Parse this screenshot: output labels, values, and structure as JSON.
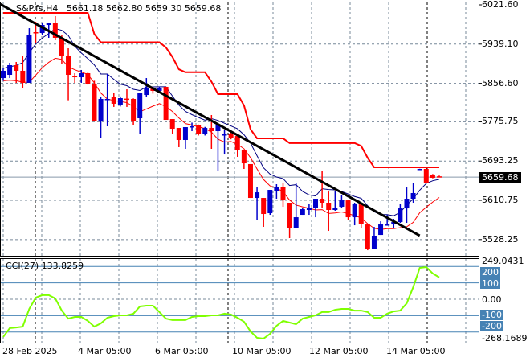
{
  "header": {
    "symbol": "S&P.fs,H4",
    "open": "5661.18",
    "high": "5662.80",
    "low": "5659.30",
    "close": "5659.68"
  },
  "price_axis": {
    "ticks": [
      "6021.60",
      "5939.10",
      "5856.60",
      "5775.75",
      "5693.25",
      "5610.75",
      "5528.25"
    ],
    "current": "5659.68"
  },
  "cci": {
    "label": "CCI(27) 133.8259",
    "max_label": "249.0431",
    "min_label": "-268.1689",
    "zero_label": "0.00",
    "levels": [
      "200",
      "100",
      "-100",
      "-200"
    ]
  },
  "time_axis": [
    "28 Feb 2025",
    "4 Mar 05:00",
    "6 Mar 05:00",
    "10 Mar 05:00",
    "12 Mar 05:00",
    "14 Mar 05:00"
  ],
  "colors": {
    "bull": "#0000cc",
    "bear": "#ff0000",
    "ma_upper": "#000080",
    "ma_lower": "#ff0000",
    "cci_line": "#7fff00",
    "level_line": "#4682b4",
    "trendline": "#000000"
  },
  "chart_data": {
    "type": "candlestick",
    "ohlc": [
      [
        5867.7,
        5888,
        5862,
        5883.0
      ],
      [
        5874.5,
        5899.9,
        5867.7,
        5894.8
      ],
      [
        5894.8,
        5901.6,
        5857.6,
        5883.0
      ],
      [
        5883.0,
        5915.1,
        5845.8,
        5857.6
      ],
      [
        5857.6,
        5972.5,
        5857.6,
        5959.0
      ],
      [
        5964.1,
        5986.1,
        5942.1,
        5962.4
      ],
      [
        5962.4,
        5982.7,
        5959.0,
        5979.3
      ],
      [
        5979.3,
        5984.4,
        5952.3,
        5982.7
      ],
      [
        5982.7,
        5998,
        5947.2,
        5952.3
      ],
      [
        5952.3,
        5959.0,
        5896.5,
        5913.4
      ],
      [
        5915.1,
        5930.3,
        5821,
        5874.5
      ],
      [
        5872,
        5877.9,
        5857.6,
        5869.4
      ],
      [
        5869.4,
        5884.7,
        5857.6,
        5877.9
      ],
      [
        5877.9,
        5879,
        5854,
        5855.9
      ],
      [
        5855.9,
        5862,
        5776.4,
        5776.4
      ],
      [
        5776.4,
        5828.9,
        5741,
        5823.8
      ],
      [
        5822,
        5876.2,
        5766.3,
        5823.8
      ],
      [
        5827.2,
        5837,
        5807,
        5813.7
      ],
      [
        5812.0,
        5829,
        5808,
        5825.5
      ],
      [
        5824.5,
        5844,
        5807,
        5822.5
      ],
      [
        5823.8,
        5825,
        5768.0,
        5776.4
      ],
      [
        5783.2,
        5835.6,
        5749.4,
        5835.6
      ],
      [
        5832.2,
        5867.7,
        5828.9,
        5845.8
      ],
      [
        5845.8,
        5849,
        5835,
        5840.7
      ],
      [
        5840.7,
        5850,
        5838,
        5847.5
      ],
      [
        5849.2,
        5849.2,
        5779.8,
        5779.8
      ],
      [
        5781.5,
        5781.5,
        5751.1,
        5761.2
      ],
      [
        5762.9,
        5762.9,
        5722.4,
        5737.6
      ],
      [
        5737.6,
        5764.6,
        5719.0,
        5764.6
      ],
      [
        5764.6,
        5774,
        5756.2,
        5766.3
      ],
      [
        5768.0,
        5770,
        5747,
        5749.4
      ],
      [
        5749.4,
        5765,
        5747,
        5762.9
      ],
      [
        5762.9,
        5790.0,
        5719.0,
        5756.2
      ],
      [
        5756.2,
        5769.7,
        5672,
        5769.7
      ],
      [
        5747,
        5757.9,
        5707.1,
        5749.4
      ],
      [
        5751.1,
        5753,
        5739,
        5741.0
      ],
      [
        5746.0,
        5746,
        5702.1,
        5715.6
      ],
      [
        5717.3,
        5717.3,
        5676.7,
        5688.5
      ],
      [
        5686.9,
        5686.9,
        5615.8,
        5615.8
      ],
      [
        5615.8,
        5637.8,
        5570.2,
        5627.6
      ],
      [
        5615.8,
        5615.8,
        5555.0,
        5582.0
      ],
      [
        5583.7,
        5632.7,
        5580.3,
        5632.7
      ],
      [
        5631.0,
        5644.6,
        5614.1,
        5639.5
      ],
      [
        5639.5,
        5647.9,
        5597.2,
        5610.7
      ],
      [
        5605.7,
        5605.7,
        5531.3,
        5553.3
      ],
      [
        5553.3,
        5647.9,
        5553.3,
        5575.2
      ],
      [
        5580.3,
        5594,
        5580.3,
        5592.1
      ],
      [
        5590.5,
        5604,
        5580.3,
        5595.5
      ],
      [
        5595.5,
        5614.1,
        5575.2,
        5614.1
      ],
      [
        5614.1,
        5673.3,
        5593.8,
        5605.7
      ],
      [
        5605.7,
        5629.3,
        5546.5,
        5590.5
      ],
      [
        5590.5,
        5631.0,
        5588.8,
        5595.5
      ],
      [
        5597.2,
        5621,
        5595.5,
        5610.7
      ],
      [
        5610.7,
        5610.7,
        5568.5,
        5575.2
      ],
      [
        5575.2,
        5605.7,
        5558.3,
        5602.3
      ],
      [
        5602.3,
        5605.7,
        5553.3,
        5561.7
      ],
      [
        5560.0,
        5560,
        5505.9,
        5509.3
      ],
      [
        5509.3,
        5555.0,
        5509.3,
        5536.4
      ],
      [
        5538.0,
        5566.7,
        5538.0,
        5560.0
      ],
      [
        5558.3,
        5580.3,
        5558.3,
        5560.0
      ],
      [
        5560.0,
        5571.9,
        5551.6,
        5565.1
      ],
      [
        5565.1,
        5604.0,
        5563.4,
        5593.8
      ],
      [
        5593.8,
        5637.8,
        5563.4,
        5614.1
      ],
      [
        5614.1,
        5647.9,
        5605.7,
        5626.0
      ],
      [
        5676.7,
        5677,
        5676,
        5676.7
      ],
      [
        5676.7,
        5681.8,
        5647.9,
        5647.9
      ],
      [
        5664.9,
        5666,
        5657,
        5658.1
      ],
      [
        5661.18,
        5662.8,
        5659.3,
        5659.68
      ]
    ],
    "channel_high": [
      6004.7,
      6004.7,
      6004.7,
      6004.7,
      6004.7,
      6004.7,
      6004.7,
      6004.7,
      6004.7,
      6004.7,
      6004.7,
      6004.7,
      6004.7,
      6004.7,
      5960,
      5943,
      5943,
      5943,
      5943,
      5943,
      5943,
      5943,
      5943,
      5943,
      5943,
      5932,
      5912,
      5886,
      5880,
      5880,
      5880,
      5880,
      5860,
      5834,
      5834,
      5834,
      5834,
      5810,
      5760,
      5741,
      5741,
      5741,
      5741,
      5741,
      5731,
      5731,
      5731,
      5731,
      5731,
      5731,
      5731,
      5731,
      5731,
      5731,
      5731,
      5725,
      5700,
      5680,
      5680,
      5680,
      5680,
      5680,
      5680,
      5680,
      5680,
      5680,
      5680,
      5680
    ],
    "trendline": {
      "start_index": -0.5,
      "start_price": 6023.3,
      "end_index": 64,
      "end_price": 5536.4
    },
    "cci_values": [
      -230,
      -176,
      -172,
      -167,
      -59,
      10,
      25,
      25,
      5,
      -69,
      -118,
      -108,
      -108,
      -132,
      -167,
      -147,
      -113,
      -103,
      -98,
      -98,
      -88,
      -44,
      -39,
      -39,
      -78,
      -118,
      -127,
      -127,
      -127,
      -108,
      -103,
      -103,
      -98,
      -98,
      -88,
      -93,
      -113,
      -137,
      -196,
      -235,
      -240,
      -211,
      -162,
      -132,
      -142,
      -152,
      -118,
      -108,
      -98,
      -78,
      -78,
      -64,
      -59,
      -59,
      -69,
      -69,
      -78,
      -113,
      -113,
      -88,
      -74,
      -69,
      -25,
      74,
      191,
      196,
      157,
      133.8
    ],
    "price_range": [
      5500,
      6031
    ],
    "cci_range": [
      -268.1689,
      249.0431
    ]
  }
}
